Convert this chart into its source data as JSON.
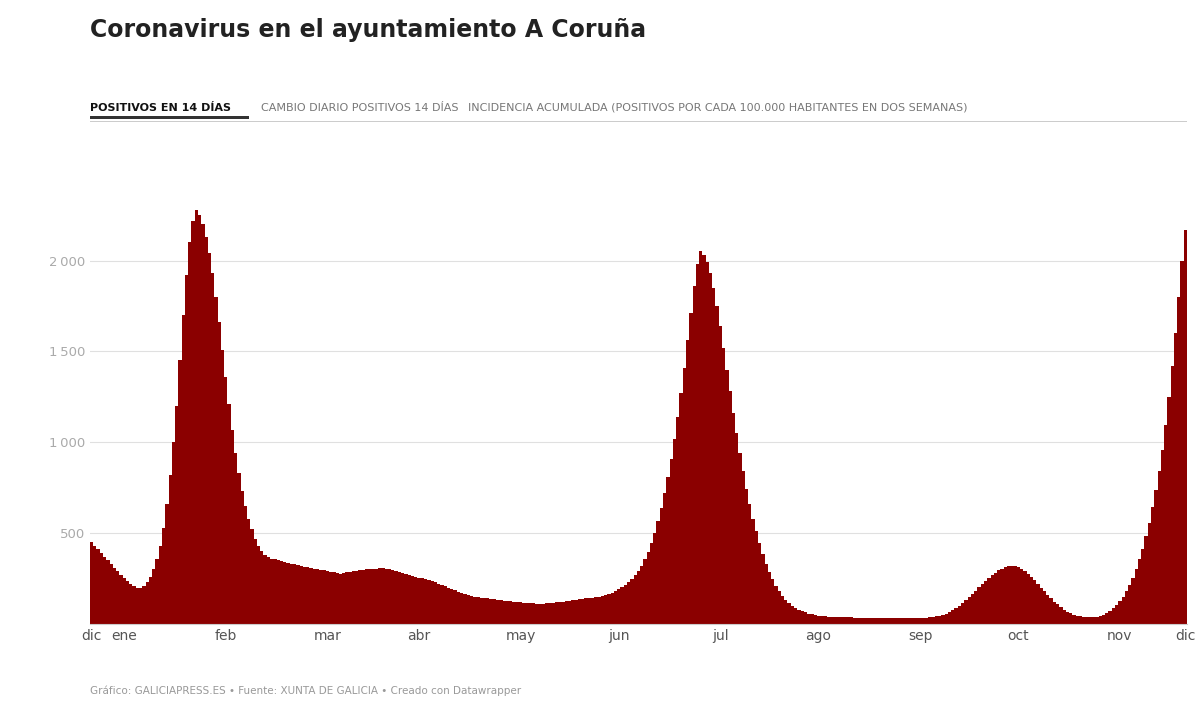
{
  "title": "Coronavirus en el ayuntamiento A Coruña",
  "tab1": "POSITIVOS EN 14 DÍAS",
  "tab2": "CAMBIO DIARIO POSITIVOS 14 DÍAS",
  "tab3": "INCIDENCIA ACUMULADA (POSITIVOS POR CADA 100.000 HABITANTES EN DOS SEMANAS)",
  "footer": "Gráfico: GALICIAPRESS.ES • Fuente: XUNTA DE GALICIA • Creado con Datawrapper",
  "bar_color": "#8B0000",
  "background_color": "#ffffff",
  "values": [
    450,
    430,
    410,
    390,
    370,
    350,
    330,
    310,
    290,
    270,
    250,
    235,
    220,
    210,
    200,
    195,
    210,
    230,
    260,
    300,
    360,
    430,
    530,
    660,
    820,
    1000,
    1200,
    1450,
    1700,
    1920,
    2100,
    2220,
    2280,
    2250,
    2200,
    2130,
    2040,
    1930,
    1800,
    1660,
    1510,
    1360,
    1210,
    1070,
    940,
    830,
    730,
    650,
    580,
    520,
    470,
    430,
    400,
    380,
    370,
    360,
    355,
    350,
    345,
    340,
    335,
    330,
    330,
    325,
    320,
    315,
    315,
    310,
    305,
    300,
    295,
    295,
    290,
    285,
    285,
    280,
    275,
    280,
    285,
    285,
    290,
    290,
    295,
    295,
    300,
    300,
    305,
    305,
    310,
    308,
    305,
    300,
    295,
    290,
    285,
    280,
    275,
    270,
    265,
    260,
    255,
    250,
    245,
    240,
    235,
    228,
    220,
    215,
    208,
    200,
    192,
    185,
    178,
    172,
    165,
    160,
    155,
    150,
    148,
    145,
    143,
    140,
    138,
    136,
    133,
    130,
    128,
    126,
    124,
    122,
    120,
    118,
    116,
    115,
    114,
    113,
    112,
    112,
    112,
    113,
    114,
    116,
    118,
    120,
    123,
    125,
    128,
    130,
    133,
    135,
    138,
    140,
    143,
    145,
    148,
    150,
    155,
    160,
    165,
    172,
    180,
    190,
    202,
    215,
    230,
    248,
    268,
    292,
    320,
    355,
    395,
    445,
    500,
    565,
    640,
    720,
    810,
    910,
    1020,
    1140,
    1270,
    1410,
    1560,
    1710,
    1860,
    1980,
    2050,
    2030,
    1990,
    1930,
    1850,
    1750,
    1640,
    1520,
    1400,
    1280,
    1160,
    1050,
    940,
    840,
    745,
    660,
    580,
    510,
    445,
    385,
    332,
    285,
    245,
    210,
    180,
    155,
    133,
    115,
    100,
    88,
    78,
    70,
    63,
    57,
    52,
    48,
    45,
    43,
    41,
    40,
    39,
    38,
    38,
    37,
    37,
    36,
    36,
    35,
    35,
    34,
    34,
    34,
    34,
    33,
    33,
    33,
    33,
    33,
    32,
    32,
    32,
    32,
    31,
    31,
    31,
    31,
    32,
    32,
    33,
    34,
    36,
    38,
    41,
    45,
    50,
    57,
    65,
    75,
    87,
    100,
    115,
    130,
    147,
    165,
    183,
    202,
    220,
    238,
    255,
    270,
    283,
    295,
    305,
    312,
    318,
    320,
    318,
    312,
    303,
    290,
    275,
    258,
    240,
    220,
    200,
    180,
    160,
    141,
    123,
    107,
    92,
    79,
    68,
    59,
    51,
    46,
    42,
    40,
    38,
    37,
    38,
    40,
    44,
    50,
    58,
    70,
    85,
    103,
    125,
    150,
    180,
    215,
    255,
    302,
    355,
    415,
    482,
    558,
    642,
    735,
    840,
    960,
    1095,
    1250,
    1420,
    1600,
    1800,
    2000,
    2170
  ],
  "month_positions": [
    0,
    10,
    41,
    72,
    100,
    131,
    161,
    192,
    222,
    253,
    283,
    314,
    334
  ],
  "month_labels": [
    "dic",
    "ene",
    "feb",
    "mar",
    "abr",
    "may",
    "jun",
    "jul",
    "ago",
    "sep",
    "oct",
    "nov",
    "dic"
  ]
}
